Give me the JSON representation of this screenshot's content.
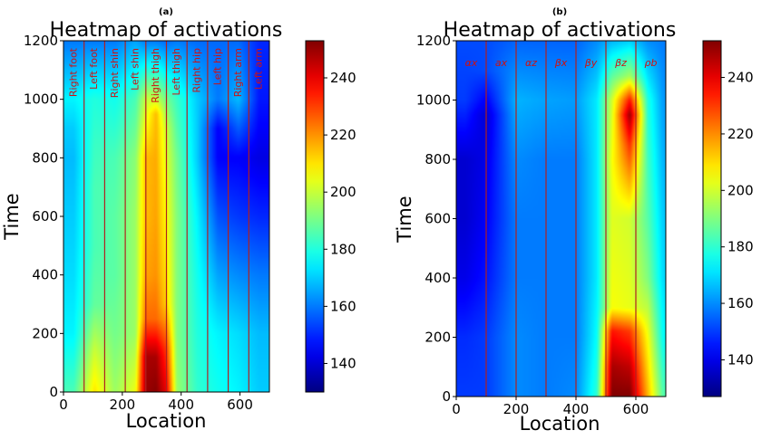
{
  "chart_data": [
    {
      "type": "heatmap",
      "panel_label": "(a)",
      "title": "Heatmap of activations",
      "xlabel": "Location",
      "ylabel": "Time",
      "xlim": [
        0,
        700
      ],
      "ylim": [
        0,
        1200
      ],
      "x_ticks": [
        0,
        200,
        400,
        600
      ],
      "y_ticks": [
        0,
        200,
        400,
        600,
        800,
        1000,
        1200
      ],
      "colorbar": {
        "range": [
          130,
          253
        ],
        "ticks": [
          140,
          160,
          180,
          200,
          220,
          240
        ]
      },
      "dividers": [
        70,
        140,
        210,
        280,
        350,
        420,
        490,
        560,
        630
      ],
      "regions": [
        {
          "label": "Right  foot",
          "x": 35
        },
        {
          "label": "Left   foot",
          "x": 105
        },
        {
          "label": "Right shin",
          "x": 175
        },
        {
          "label": "Left   shin",
          "x": 245
        },
        {
          "label": "Right thigh",
          "x": 315
        },
        {
          "label": "Left   thigh",
          "x": 385
        },
        {
          "label": "Right hip",
          "x": 455
        },
        {
          "label": "Left   hip",
          "x": 525
        },
        {
          "label": "Right arm",
          "x": 595
        },
        {
          "label": "Left   arm",
          "x": 665
        }
      ],
      "columns": [
        {
          "x": 35,
          "values": [
            [
              0,
              185
            ],
            [
              200,
              175
            ],
            [
              400,
              172
            ],
            [
              600,
              170
            ],
            [
              800,
              168
            ],
            [
              900,
              170
            ],
            [
              1000,
              175
            ],
            [
              1200,
              160
            ]
          ]
        },
        {
          "x": 105,
          "values": [
            [
              0,
              210
            ],
            [
              150,
              200
            ],
            [
              300,
              188
            ],
            [
              500,
              185
            ],
            [
              700,
              185
            ],
            [
              850,
              183
            ],
            [
              1000,
              180
            ],
            [
              1200,
              160
            ]
          ]
        },
        {
          "x": 175,
          "values": [
            [
              0,
              195
            ],
            [
              200,
              190
            ],
            [
              400,
              187
            ],
            [
              600,
              187
            ],
            [
              800,
              185
            ],
            [
              1000,
              178
            ],
            [
              1200,
              160
            ]
          ]
        },
        {
          "x": 245,
          "values": [
            [
              0,
              205
            ],
            [
              200,
              195
            ],
            [
              400,
              195
            ],
            [
              600,
              195
            ],
            [
              800,
              193
            ],
            [
              1000,
              185
            ],
            [
              1200,
              165
            ]
          ]
        },
        {
          "x": 280,
          "values": [
            [
              0,
              250
            ],
            [
              120,
              248
            ],
            [
              250,
              225
            ],
            [
              400,
              218
            ],
            [
              600,
              215
            ],
            [
              800,
              215
            ],
            [
              1000,
              200
            ],
            [
              1200,
              160
            ]
          ]
        },
        {
          "x": 315,
          "values": [
            [
              0,
              252
            ],
            [
              120,
              248
            ],
            [
              250,
              225
            ],
            [
              400,
              220
            ],
            [
              600,
              218
            ],
            [
              800,
              217
            ],
            [
              950,
              215
            ],
            [
              1000,
              200
            ],
            [
              1200,
              160
            ]
          ]
        },
        {
          "x": 350,
          "values": [
            [
              0,
              240
            ],
            [
              150,
              230
            ],
            [
              300,
              212
            ],
            [
              500,
              208
            ],
            [
              700,
              205
            ],
            [
              900,
              200
            ],
            [
              1000,
              190
            ],
            [
              1200,
              158
            ]
          ]
        },
        {
          "x": 385,
          "values": [
            [
              0,
              195
            ],
            [
              200,
              192
            ],
            [
              400,
              192
            ],
            [
              600,
              192
            ],
            [
              800,
              190
            ],
            [
              1000,
              183
            ],
            [
              1200,
              160
            ]
          ]
        },
        {
          "x": 455,
          "values": [
            [
              0,
              182
            ],
            [
              200,
              180
            ],
            [
              400,
              178
            ],
            [
              600,
              175
            ],
            [
              800,
              170
            ],
            [
              1000,
              170
            ],
            [
              1200,
              158
            ]
          ]
        },
        {
          "x": 525,
          "values": [
            [
              0,
              178
            ],
            [
              200,
              175
            ],
            [
              400,
              165
            ],
            [
              600,
              155
            ],
            [
              800,
              145
            ],
            [
              900,
              145
            ],
            [
              1000,
              160
            ],
            [
              1200,
              158
            ]
          ]
        },
        {
          "x": 595,
          "values": [
            [
              0,
              175
            ],
            [
              200,
              172
            ],
            [
              400,
              162
            ],
            [
              600,
              152
            ],
            [
              800,
              145
            ],
            [
              1000,
              168
            ],
            [
              1200,
              158
            ]
          ]
        },
        {
          "x": 665,
          "values": [
            [
              0,
              170
            ],
            [
              200,
              168
            ],
            [
              400,
              160
            ],
            [
              600,
              150
            ],
            [
              800,
              142
            ],
            [
              1000,
              148
            ],
            [
              1200,
              150
            ]
          ]
        }
      ]
    },
    {
      "type": "heatmap",
      "panel_label": "(b)",
      "title": "Heatmap of activations",
      "xlabel": "Location",
      "ylabel": "Time",
      "xlim": [
        0,
        700
      ],
      "ylim": [
        0,
        1200
      ],
      "x_ticks": [
        0,
        200,
        400,
        600
      ],
      "y_ticks": [
        0,
        200,
        400,
        600,
        800,
        1000,
        1200
      ],
      "colorbar": {
        "range": [
          127,
          253
        ],
        "ticks": [
          140,
          160,
          180,
          200,
          220,
          240
        ]
      },
      "dividers": [
        100,
        200,
        300,
        400,
        500,
        600
      ],
      "regions": [
        {
          "label": "αx",
          "x": 50
        },
        {
          "label": "ax",
          "x": 150
        },
        {
          "label": "αz",
          "x": 250
        },
        {
          "label": "βx",
          "x": 350
        },
        {
          "label": "βy",
          "x": 450
        },
        {
          "label": "βz",
          "x": 550
        },
        {
          "label": "ρb",
          "x": 650
        }
      ],
      "columns": [
        {
          "x": 30,
          "values": [
            [
              0,
              150
            ],
            [
              200,
              148
            ],
            [
              400,
              140
            ],
            [
              600,
              137
            ],
            [
              800,
              137
            ],
            [
              1000,
              150
            ],
            [
              1200,
              152
            ]
          ]
        },
        {
          "x": 100,
          "values": [
            [
              0,
              150
            ],
            [
              200,
              150
            ],
            [
              400,
              145
            ],
            [
              600,
              142
            ],
            [
              800,
              140
            ],
            [
              950,
              137
            ],
            [
              1100,
              152
            ],
            [
              1200,
              152
            ]
          ]
        },
        {
          "x": 200,
          "values": [
            [
              0,
              160
            ],
            [
              200,
              160
            ],
            [
              400,
              158
            ],
            [
              600,
              158
            ],
            [
              800,
              160
            ],
            [
              1000,
              165
            ],
            [
              1200,
              155
            ]
          ]
        },
        {
          "x": 300,
          "values": [
            [
              0,
              158
            ],
            [
              200,
              158
            ],
            [
              400,
              158
            ],
            [
              600,
              158
            ],
            [
              800,
              158
            ],
            [
              1000,
              163
            ],
            [
              1200,
              155
            ]
          ]
        },
        {
          "x": 400,
          "values": [
            [
              0,
              160
            ],
            [
              200,
              158
            ],
            [
              400,
              158
            ],
            [
              600,
              158
            ],
            [
              800,
              158
            ],
            [
              1000,
              162
            ],
            [
              1200,
              155
            ]
          ]
        },
        {
          "x": 470,
          "values": [
            [
              0,
              180
            ],
            [
              200,
              175
            ],
            [
              400,
              172
            ],
            [
              600,
              172
            ],
            [
              800,
              172
            ],
            [
              1000,
              172
            ],
            [
              1200,
              160
            ]
          ]
        },
        {
          "x": 520,
          "values": [
            [
              0,
              253
            ],
            [
              100,
              248
            ],
            [
              220,
              235
            ],
            [
              300,
              205
            ],
            [
              600,
              202
            ],
            [
              800,
              205
            ],
            [
              1000,
              200
            ],
            [
              1200,
              165
            ]
          ]
        },
        {
          "x": 580,
          "values": [
            [
              0,
              253
            ],
            [
              100,
              245
            ],
            [
              220,
              230
            ],
            [
              300,
              203
            ],
            [
              600,
              200
            ],
            [
              850,
              232
            ],
            [
              950,
              250
            ],
            [
              1000,
              235
            ],
            [
              1080,
              195
            ],
            [
              1200,
              168
            ]
          ]
        },
        {
          "x": 640,
          "values": [
            [
              0,
              215
            ],
            [
              200,
              205
            ],
            [
              400,
              190
            ],
            [
              600,
              185
            ],
            [
              800,
              182
            ],
            [
              1000,
              178
            ],
            [
              1200,
              160
            ]
          ]
        },
        {
          "x": 690,
          "values": [
            [
              0,
              185
            ],
            [
              200,
              175
            ],
            [
              400,
              170
            ],
            [
              600,
              168
            ],
            [
              800,
              165
            ],
            [
              1000,
              162
            ],
            [
              1200,
              158
            ]
          ]
        }
      ]
    }
  ]
}
